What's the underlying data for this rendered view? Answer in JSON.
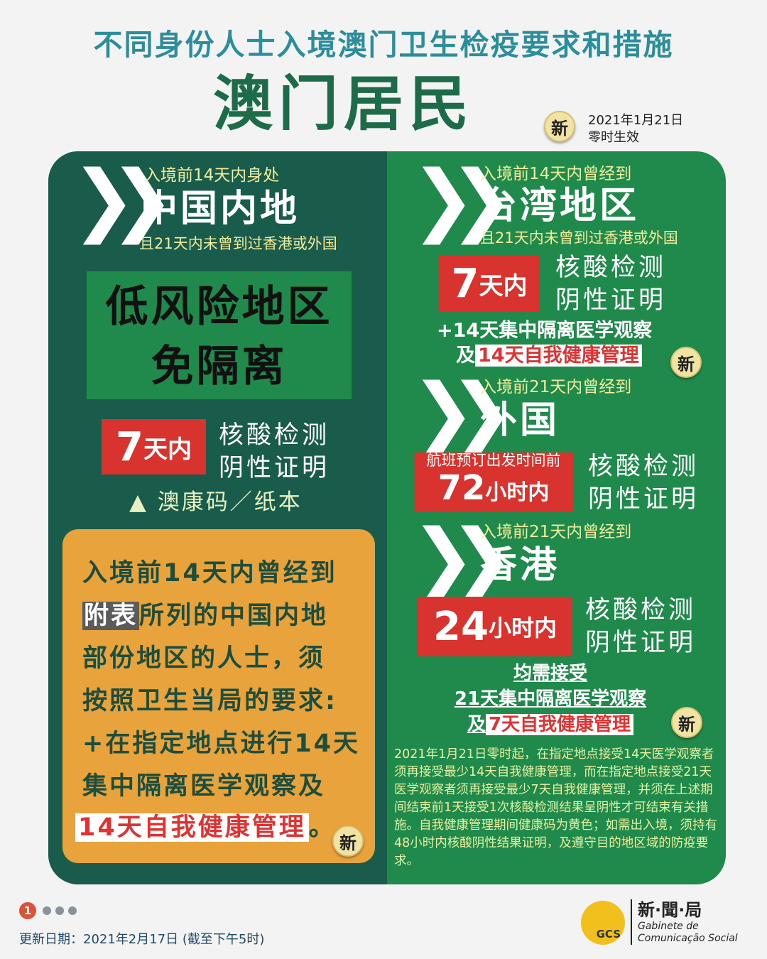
{
  "header": {
    "title": "不同身份人士入境澳门卫生检疫要求和措施",
    "subtitle": "澳门居民",
    "new_badge": "新",
    "effective_date": "2021年1月21日",
    "effective_time": "零时生效"
  },
  "left": {
    "pre": "入境前14天内身处",
    "region": "中国内地",
    "condition": "且21天内未曾到过香港或外国",
    "risk_line1": "低风险地区",
    "risk_line2": "免隔离",
    "test_days": "7",
    "test_unit": "天内",
    "test_line1": "核酸检测",
    "test_line2": "阴性证明",
    "health_code": "▲ 澳康码／纸本",
    "orange": {
      "l1": "入境前14天内曾经到",
      "hl": "附表",
      "l2": "所列的中国内地",
      "l3": "部份地区的人士，须",
      "l4": "按照卫生当局的要求:",
      "l5": "+在指定地点进行14天",
      "l6": "集中隔离医学观察及",
      "l7": "14天自我健康管理",
      "l7end": "。",
      "badge": "新"
    }
  },
  "right": {
    "taiwan": {
      "pre": "入境前14天内曾经到",
      "region": "台湾地区",
      "condition": "且21天内未曾到过香港或外国",
      "test_days": "7",
      "test_unit": "天内",
      "test_line1": "核酸检测",
      "test_line2": "阴性证明",
      "extra1": "+14天集中隔离医学观察",
      "extra2_pre": "及",
      "extra2_hl": "14天自我健康管理",
      "badge": "新"
    },
    "foreign": {
      "pre": "入境前21天内曾经到",
      "region": "外国",
      "test_note": "航班预订出发时间前",
      "test_hours": "72",
      "test_unit": "小时内",
      "test_line1": "核酸检测",
      "test_line2": "阴性证明"
    },
    "hongkong": {
      "pre": "入境前21天内曾经到",
      "region": "香港",
      "test_hours": "24",
      "test_unit": "小时内",
      "test_line1": "核酸检测",
      "test_line2": "阴性证明"
    },
    "common1": "均需接受",
    "common2": "21天集中隔离医学观察",
    "common3_pre": "及",
    "common3_hl": "7天自我健康管理",
    "badge": "新",
    "note": "2021年1月21日零时起，在指定地点接受14天医学观察者须再接受最少14天自我健康管理，而在指定地点接受21天医学观察者须再接受最少7天自我健康管理，并须在上述期间结束前1天接受1次核酸检测结果呈阴性才可结束有关措施。自我健康管理期间健康码为黄色；如需出入境，须持有48小时内核酸阴性结果证明，及遵守目的地区域的防疫要求。"
  },
  "footer": {
    "page": "1",
    "update": "更新日期：2021年2月17日 (截至下午5时)",
    "logo_cn": "新·聞·局",
    "logo_pt1": "Gabinete de",
    "logo_pt2": "Comunicação Social",
    "logo_mark": "GCS"
  },
  "colors": {
    "title": "#2c8d9b",
    "dark_green": "#1a5c4c",
    "green": "#1f8a4c",
    "orange": "#e8a33c",
    "red": "#d8332e"
  }
}
